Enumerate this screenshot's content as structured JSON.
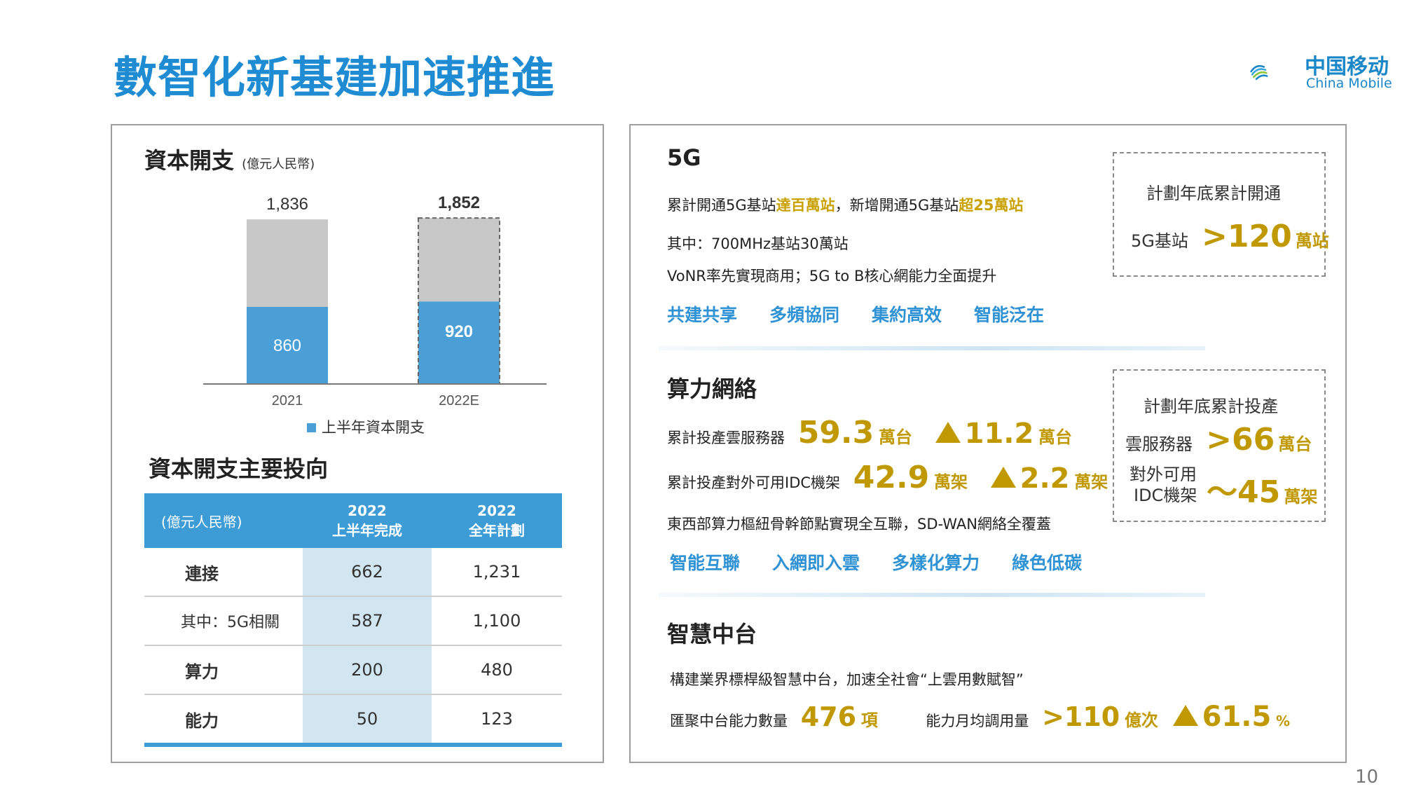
{
  "header": {
    "title": "數智化新基建加速推進"
  },
  "logo": {
    "cn": "中国移动",
    "en": "China Mobile"
  },
  "page_number": "10",
  "capex": {
    "title": "資本開支",
    "unit": "(億元人民幣)",
    "legend": "上半年資本開支",
    "colors": {
      "h1": "#4a9fd6",
      "rest": "#c8c8c8"
    }
  },
  "chart_data": {
    "type": "bar",
    "stacked": true,
    "categories": [
      "2021",
      "2022E"
    ],
    "series": [
      {
        "name": "上半年資本開支",
        "values": [
          860,
          920
        ]
      }
    ],
    "totals": [
      1836,
      1852
    ],
    "total_labels": [
      "1,836",
      "1,852"
    ],
    "h1_labels": [
      "860",
      "920"
    ],
    "ylim": [
      0,
      1900
    ],
    "legend": "bottom"
  },
  "invest": {
    "title": "資本開支主要投向",
    "header": {
      "unit": "(億元人民幣)",
      "col2": [
        "2022",
        "上半年完成"
      ],
      "col3": [
        "2022",
        "全年計劃"
      ]
    },
    "rows": [
      {
        "label": "連接",
        "h1": "662",
        "plan": "1,231",
        "bold": true
      },
      {
        "label": "其中：5G相關",
        "h1": "587",
        "plan": "1,100",
        "bold": false
      },
      {
        "label": "算力",
        "h1": "200",
        "plan": "480",
        "bold": true
      },
      {
        "label": "能力",
        "h1": "50",
        "plan": "123",
        "bold": true
      }
    ]
  },
  "s5g": {
    "title": "5G",
    "l1a": "累計開通5G基站",
    "l1b": "達百萬站",
    "l1c": "，新增開通5G基站",
    "l1d": "超25萬站",
    "l2": "其中：700MHz基站30萬站",
    "l3": "VoNR率先實現商用；5G to B核心網能力全面提升",
    "tags": [
      "共建共享",
      "多頻協同",
      "集約高效",
      "智能泛在"
    ],
    "box": {
      "title": "計劃年底累計開通",
      "label": "5G基站",
      "value": ">120",
      "unit": "萬站"
    }
  },
  "compute": {
    "title": "算力網絡",
    "r1": {
      "label": "累計投產雲服務器",
      "value": "59.3",
      "unit": "萬台",
      "inc": "11.2",
      "inc_unit": "萬台"
    },
    "r2": {
      "label": "累計投產對外可用IDC機架",
      "value": "42.9",
      "unit": "萬架",
      "inc": "2.2",
      "inc_unit": "萬架"
    },
    "r3": "東西部算力樞紐骨幹節點實現全互聯，SD-WAN網絡全覆蓋",
    "tags": [
      "智能互聯",
      "入網即入雲",
      "多樣化算力",
      "綠色低碳"
    ],
    "box": {
      "title": "計劃年底累計投產",
      "l1": "雲服務器",
      "v1": ">66",
      "u1": "萬台",
      "l2a": "對外可用",
      "l2b": "IDC機架",
      "v2": "～45",
      "u2": "萬架"
    }
  },
  "middle": {
    "title": "智慧中台",
    "l1": "構建業界標桿級智慧中台，加速全社會“上雲用數賦智”",
    "a_label": "匯聚中台能力數量",
    "a_value": "476",
    "a_unit": "項",
    "b_label": "能力月均調用量",
    "b_value": ">110",
    "b_unit": "億次",
    "b_inc": "61.5",
    "b_inc_unit": "%"
  }
}
